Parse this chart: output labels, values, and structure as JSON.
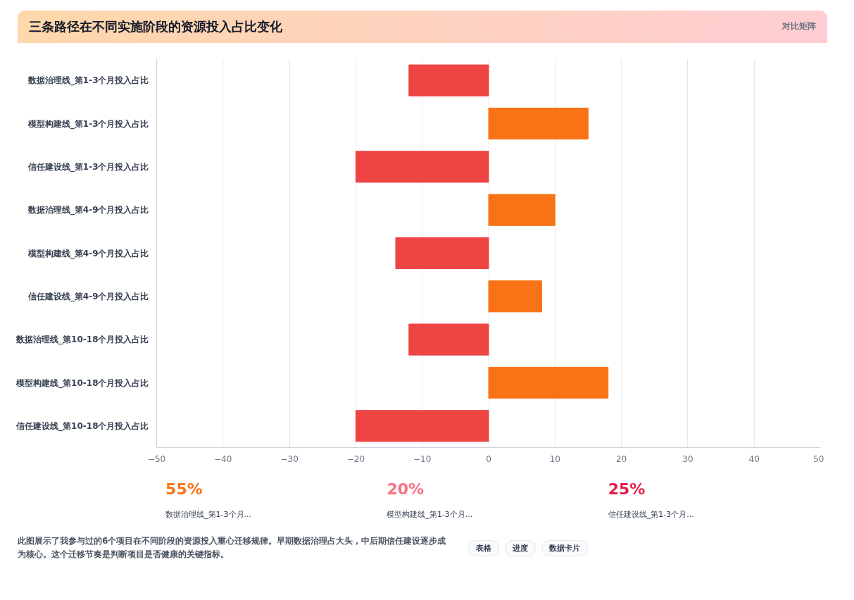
{
  "chart_data": [
    {
      "type": "bar",
      "orientation": "horizontal",
      "title": "三条路径在不同实施阶段的资源投入占比变化",
      "subtitle": "对比矩阵",
      "categories": [
        "数据治理线_第1-3个月投入占比",
        "模型构建线_第1-3个月投入占比",
        "信任建设线_第1-3个月投入占比",
        "数据治理线_第4-9个月投入占比",
        "模型构建线_第4-9个月投入占比",
        "信任建设线_第4-9个月投入占比",
        "数据治理线_第10-18个月投入占比",
        "模型构建线_第10-18个月投入占比",
        "信任建设线_第10-18个月投入占比"
      ],
      "values": [
        -12,
        15,
        -20,
        10,
        -14,
        8,
        -12,
        18,
        -20
      ],
      "colors": [
        "#ef4444",
        "#f97316",
        "#ef4444",
        "#f97316",
        "#ef4444",
        "#f97316",
        "#ef4444",
        "#f97316",
        "#ef4444"
      ],
      "xlim": [
        -50,
        50
      ],
      "xticks": [
        -50,
        -40,
        -30,
        -20,
        -10,
        0,
        10,
        20,
        30,
        40,
        50
      ],
      "grid": "x"
    },
    {
      "type": "other",
      "categories": [
        "数据治理线_第1-3个月...",
        "模型构建线_第1-3个月...",
        "信任建设线_第1-3个月..."
      ],
      "values": [
        55,
        20,
        25
      ],
      "value_labels": [
        "55%",
        "20%",
        "25%"
      ],
      "colors": [
        "#f97316",
        "#f87185",
        "#e11d48"
      ],
      "annotations": [
        "此图展示了我参与过的6个项目在不同阶段的资源投入重心迁移规律。早期数据治理占大头，中后期信任建设逐步成为核心。这个迁移节奏是判断项目是否健康的关键指标。",
        "表格",
        "进度",
        "数据卡片"
      ]
    }
  ]
}
